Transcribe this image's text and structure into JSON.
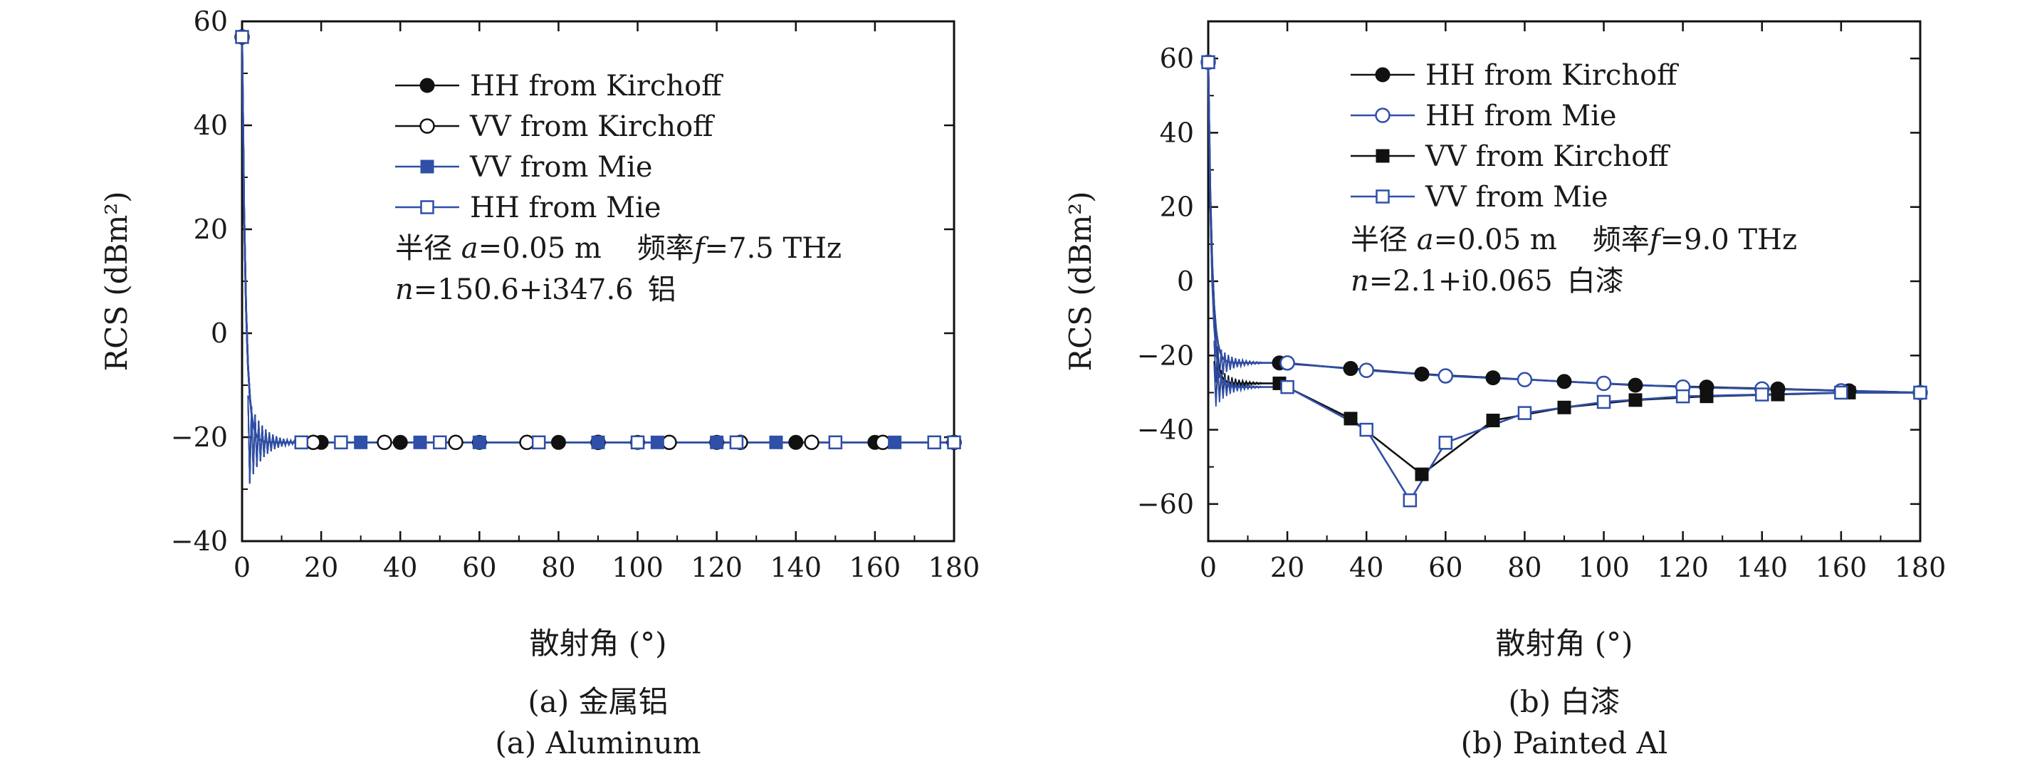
{
  "colors": {
    "black": "#111111",
    "blue": "#2f4fa8"
  },
  "chart_data": [
    {
      "type": "line",
      "panel": "a",
      "xlabel": "散射角 (°)",
      "ylabel": "RCS (dBm²)",
      "xlim": [
        0,
        180
      ],
      "ylim": [
        -40,
        60
      ],
      "xticks": [
        0,
        20,
        40,
        60,
        80,
        100,
        120,
        140,
        160,
        180
      ],
      "yticks": [
        -40,
        -20,
        0,
        20,
        40,
        60
      ],
      "caption_cn": "(a) 金属铝",
      "caption_en": "(a) Aluminum",
      "annotation": {
        "line1_prefix": "半径 ",
        "line1_var": "a",
        "line1_value": "=0.05 m",
        "line1_freq_label": "频率",
        "line1_freq_var": "f",
        "line1_freq_value": "=7.5 THz",
        "line2_var": "n",
        "line2_value": "=150.6+i347.6",
        "line2_material": "铝"
      },
      "series": [
        {
          "name": "HH  from Kirchoff",
          "color": "#111111",
          "marker": "filled-circle",
          "x": [
            0,
            20,
            40,
            60,
            80,
            90,
            100,
            120,
            140,
            160,
            180
          ],
          "y": [
            57,
            -21,
            -21,
            -21,
            -21,
            -21,
            -21,
            -21,
            -21,
            -21,
            -21
          ]
        },
        {
          "name": "VV  from Kirchoff",
          "color": "#111111",
          "marker": "open-circle",
          "x": [
            0,
            18,
            36,
            54,
            72,
            90,
            108,
            126,
            144,
            162,
            180
          ],
          "y": [
            57,
            -21,
            -21,
            -21,
            -21,
            -21,
            -21,
            -21,
            -21,
            -21,
            -21
          ]
        },
        {
          "name": "VV  from Mie",
          "color": "#2f4fa8",
          "marker": "filled-square",
          "x": [
            0,
            15,
            30,
            45,
            60,
            75,
            90,
            105,
            120,
            135,
            150,
            165,
            180
          ],
          "y": [
            57,
            -21,
            -21,
            -21,
            -21,
            -21,
            -21,
            -21,
            -21,
            -21,
            -21,
            -21,
            -21
          ]
        },
        {
          "name": "HH  from Mie",
          "color": "#2f4fa8",
          "marker": "open-square",
          "x": [
            0,
            15,
            25,
            50,
            75,
            100,
            125,
            150,
            175,
            180
          ],
          "y": [
            57,
            -21,
            -21,
            -21,
            -21,
            -21,
            -21,
            -21,
            -21,
            -21
          ]
        }
      ]
    },
    {
      "type": "line",
      "panel": "b",
      "xlabel": "散射角 (°)",
      "ylabel": "RCS (dBm²)",
      "xlim": [
        0,
        180
      ],
      "ylim": [
        -70,
        70
      ],
      "xticks": [
        0,
        20,
        40,
        60,
        80,
        100,
        120,
        140,
        160,
        180
      ],
      "yticks": [
        -60,
        -40,
        -20,
        0,
        20,
        40,
        60
      ],
      "caption_cn": "(b) 白漆",
      "caption_en": "(b) Painted Al",
      "annotation": {
        "line1_prefix": "半径 ",
        "line1_var": "a",
        "line1_value": "=0.05 m",
        "line1_freq_label": "频率",
        "line1_freq_var": "f",
        "line1_freq_value": "=9.0 THz",
        "line2_var": "n",
        "line2_value": "=2.1+i0.065",
        "line2_material": "白漆"
      },
      "series": [
        {
          "name": "HH  from Kirchoff",
          "color": "#111111",
          "marker": "filled-circle",
          "x": [
            0,
            18,
            36,
            54,
            72,
            90,
            108,
            126,
            144,
            162,
            180
          ],
          "y": [
            59,
            -22,
            -23.5,
            -25,
            -26,
            -27,
            -28,
            -28.5,
            -29,
            -29.5,
            -30
          ]
        },
        {
          "name": "HH  from Mie",
          "color": "#2f4fa8",
          "marker": "open-circle",
          "x": [
            0,
            20,
            40,
            60,
            80,
            100,
            120,
            140,
            160,
            180
          ],
          "y": [
            59,
            -22,
            -24,
            -25.5,
            -26.5,
            -27.5,
            -28.5,
            -29,
            -29.5,
            -30
          ]
        },
        {
          "name": "VV  from Kirchoff",
          "color": "#111111",
          "marker": "filled-square",
          "x": [
            0,
            18,
            36,
            54,
            72,
            90,
            108,
            126,
            144,
            162,
            180
          ],
          "y": [
            59,
            -27.5,
            -37,
            -52,
            -37.5,
            -34,
            -32,
            -31,
            -30.5,
            -30,
            -30
          ]
        },
        {
          "name": "VV  from Mie",
          "color": "#2f4fa8",
          "marker": "open-square",
          "x": [
            0,
            20,
            40,
            51,
            60,
            80,
            100,
            120,
            140,
            160,
            180
          ],
          "y": [
            59,
            -28.5,
            -40,
            -59,
            -43.5,
            -35.5,
            -32.5,
            -31,
            -30.5,
            -30,
            -30
          ]
        }
      ]
    }
  ]
}
